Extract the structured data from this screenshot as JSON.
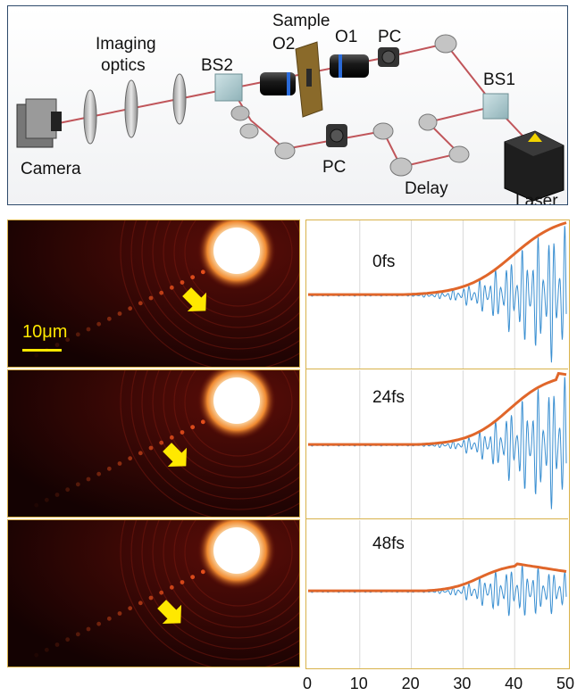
{
  "setup": {
    "labels": {
      "imaging_optics_1": "Imaging",
      "imaging_optics_2": "optics",
      "bs2": "BS2",
      "sample": "Sample",
      "o2": "O2",
      "o1": "O1",
      "pc_top": "PC",
      "bs1": "BS1",
      "camera": "Camera",
      "pc_bottom": "PC",
      "delay": "Delay",
      "laser": "Laser"
    }
  },
  "images": {
    "scale_bar_label": "10μm"
  },
  "chart_data": {
    "type": "line",
    "x_ticks": [
      0,
      10,
      20,
      30,
      40,
      50
    ],
    "xlim": [
      0,
      50
    ],
    "grid": "vertical",
    "panels": [
      {
        "label": "0fs",
        "envelope": {
          "onset": 27,
          "peak_x": 50,
          "peak_value": 1.0
        },
        "trace_color": "#3a8fd1",
        "envelope_color": "#e0662a"
      },
      {
        "label": "24fs",
        "envelope": {
          "onset": 28,
          "peak_x": 48,
          "peak_value": 0.9
        },
        "trace_color": "#3a8fd1",
        "envelope_color": "#e0662a"
      },
      {
        "label": "48fs",
        "envelope": {
          "onset": 25,
          "peak_x": 40,
          "peak_value": 0.35
        },
        "trace_color": "#3a8fd1",
        "envelope_color": "#e0662a"
      }
    ]
  }
}
